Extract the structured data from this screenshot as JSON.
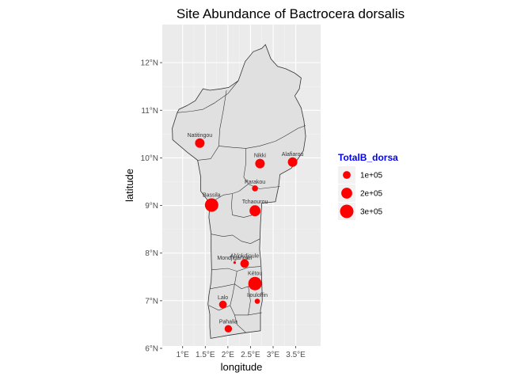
{
  "chart_data": {
    "type": "scatter",
    "map": "Benin",
    "title": "Site Abundance of Bactrocera dorsalis",
    "xlabel": "longitude",
    "ylabel": "latitude",
    "xlim": [
      0.55,
      4.05
    ],
    "ylim": [
      6.05,
      12.8
    ],
    "x_ticks": [
      {
        "value": 1.0,
        "label": "1°E"
      },
      {
        "value": 1.5,
        "label": "1.5°E"
      },
      {
        "value": 2.0,
        "label": "2°E"
      },
      {
        "value": 2.5,
        "label": "2.5°E"
      },
      {
        "value": 3.0,
        "label": "3°E"
      },
      {
        "value": 3.5,
        "label": "3.5°E"
      }
    ],
    "y_ticks": [
      {
        "value": 6,
        "label": "6°N"
      },
      {
        "value": 7,
        "label": "7°N"
      },
      {
        "value": 8,
        "label": "8°N"
      },
      {
        "value": 9,
        "label": "9°N"
      },
      {
        "value": 10,
        "label": "10°N"
      },
      {
        "value": 11,
        "label": "11°N"
      },
      {
        "value": 12,
        "label": "12°N"
      }
    ],
    "point_color": "#ff0000",
    "map_fill": "#e0e0e0",
    "map_border": "#333333",
    "panel_background": "#ebebeb",
    "grid": true,
    "legend": {
      "title": "TotalB_dorsa",
      "position": "right",
      "entries": [
        {
          "label": "1e+05",
          "value": 100000
        },
        {
          "label": "2e+05",
          "value": 200000
        },
        {
          "label": "3e+05",
          "value": 300000
        }
      ]
    },
    "points": [
      {
        "name": "Natitingou",
        "lon": 1.38,
        "lat": 10.31,
        "value": 150000
      },
      {
        "name": "Nikki",
        "lon": 2.71,
        "lat": 9.88,
        "value": 150000
      },
      {
        "name": "Alafiarou",
        "lon": 3.43,
        "lat": 9.91,
        "value": 150000
      },
      {
        "name": "Parakou",
        "lon": 2.6,
        "lat": 9.36,
        "value": 60000
      },
      {
        "name": "Bassila",
        "lon": 1.64,
        "lat": 9.01,
        "value": 300000
      },
      {
        "name": "Tchaourou",
        "lon": 2.6,
        "lat": 8.89,
        "value": 200000
      },
      {
        "name": "Mondjigangan",
        "lon": 2.15,
        "lat": 7.8,
        "value": 10000
      },
      {
        "name": "Ahlokdjoule",
        "lon": 2.37,
        "lat": 7.78,
        "value": 120000
      },
      {
        "name": "Kétou",
        "lon": 2.6,
        "lat": 7.36,
        "value": 300000
      },
      {
        "name": "Ilouloffin",
        "lon": 2.65,
        "lat": 6.99,
        "value": 45000
      },
      {
        "name": "Lalo",
        "lon": 1.89,
        "lat": 6.92,
        "value": 100000
      },
      {
        "name": "Pahalia",
        "lon": 2.01,
        "lat": 6.41,
        "value": 90000
      }
    ]
  }
}
